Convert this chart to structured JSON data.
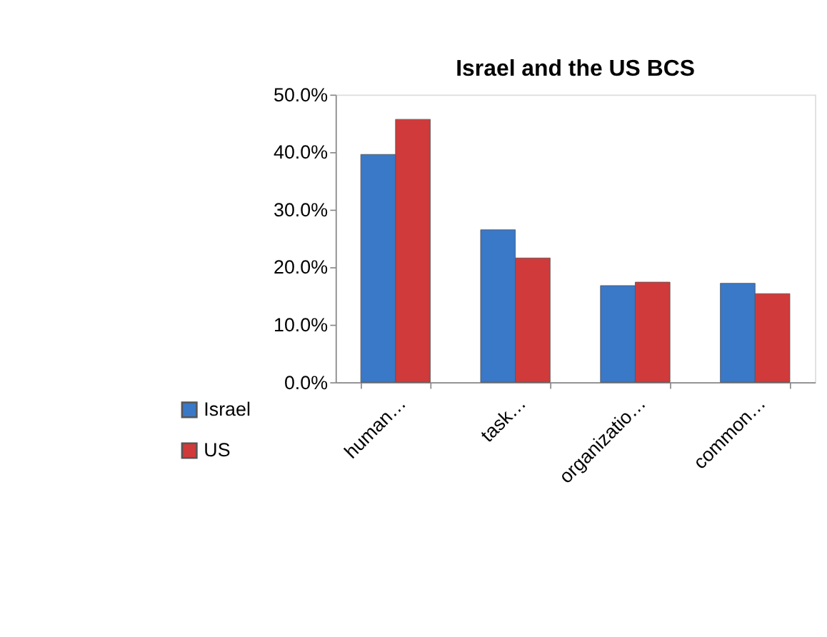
{
  "chart_data": {
    "type": "bar",
    "title": "Israel and the US BCS",
    "categories": [
      "human…",
      "task…",
      "organizatio…",
      "common…"
    ],
    "series": [
      {
        "name": "Israel",
        "color": "#3a78c8",
        "values": [
          39.6,
          26.5,
          16.8,
          17.2
        ]
      },
      {
        "name": "US",
        "color": "#d03a3a",
        "values": [
          45.7,
          21.6,
          17.4,
          15.4
        ]
      }
    ],
    "ylim": [
      0,
      50
    ],
    "yticks": [
      {
        "value": 0,
        "label": "0.0%"
      },
      {
        "value": 10,
        "label": "10.0%"
      },
      {
        "value": 20,
        "label": "20.0%"
      },
      {
        "value": 30,
        "label": "30.0%"
      },
      {
        "value": 40,
        "label": "40.0%"
      },
      {
        "value": 50,
        "label": "50.0%"
      }
    ],
    "grid": false,
    "legend": "bottom left"
  }
}
